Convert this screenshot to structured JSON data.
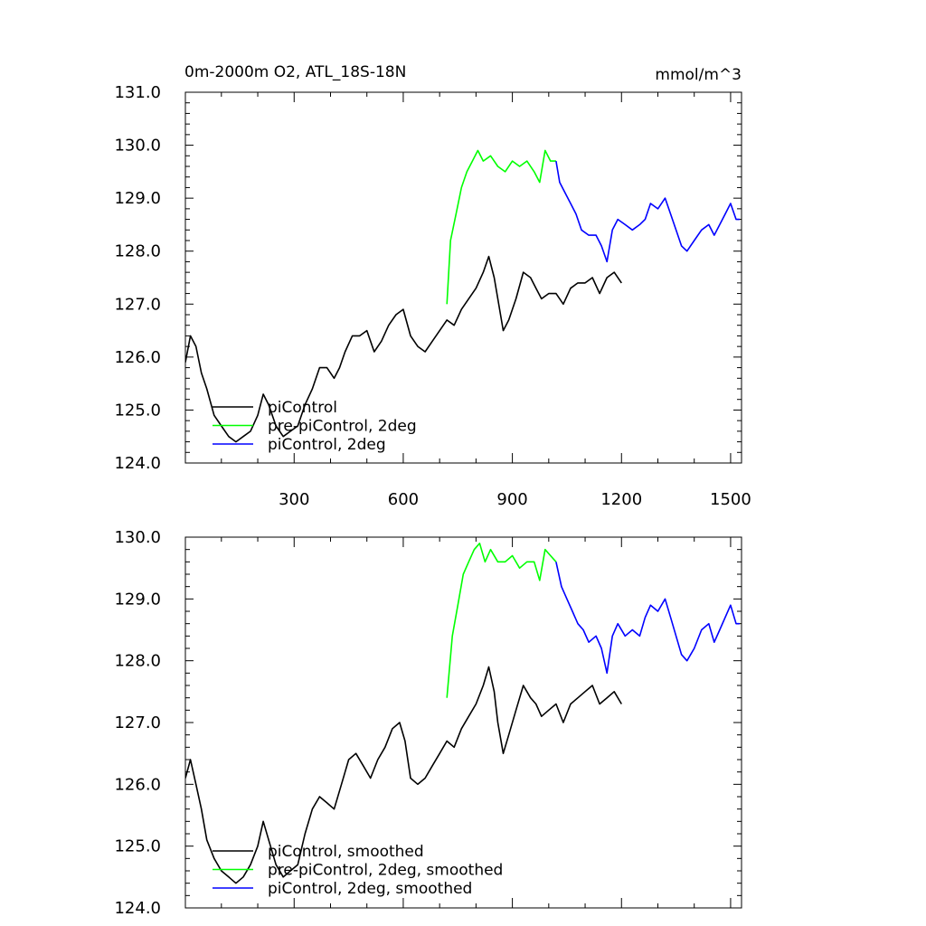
{
  "colors": {
    "piControl": "#000000",
    "prepiControl": "#00ff00",
    "piControl2deg": "#0000ff"
  },
  "chart_data": [
    {
      "type": "line",
      "title": "0m-2000m O2, ATL_18S-18N",
      "units": "mmol/m^3",
      "xlim": [
        1,
        1530
      ],
      "ylim": [
        124.0,
        131.0
      ],
      "xticks": [
        300,
        600,
        900,
        1200,
        1500
      ],
      "xtick_labels": [
        "300",
        "600",
        "900",
        "1200",
        "1500"
      ],
      "yticks": [
        124,
        125,
        126,
        127,
        128,
        129,
        130,
        131
      ],
      "ytick_labels": [
        "124.0",
        "125.0",
        "126.0",
        "127.0",
        "128.0",
        "129.0",
        "130.0",
        "131.0"
      ],
      "legend_position": "bottom-left",
      "series": [
        {
          "name": "piControl",
          "color": "#000000",
          "points": [
            [
              1,
              125.9
            ],
            [
              15,
              126.4
            ],
            [
              30,
              126.2
            ],
            [
              45,
              125.7
            ],
            [
              60,
              125.4
            ],
            [
              80,
              124.9
            ],
            [
              100,
              124.7
            ],
            [
              120,
              124.5
            ],
            [
              140,
              124.4
            ],
            [
              160,
              124.5
            ],
            [
              180,
              124.6
            ],
            [
              200,
              124.9
            ],
            [
              215,
              125.3
            ],
            [
              230,
              125.1
            ],
            [
              250,
              124.7
            ],
            [
              270,
              124.5
            ],
            [
              290,
              124.6
            ],
            [
              310,
              124.7
            ],
            [
              330,
              125.1
            ],
            [
              350,
              125.4
            ],
            [
              370,
              125.8
            ],
            [
              390,
              125.8
            ],
            [
              410,
              125.6
            ],
            [
              425,
              125.8
            ],
            [
              440,
              126.1
            ],
            [
              460,
              126.4
            ],
            [
              480,
              126.4
            ],
            [
              500,
              126.5
            ],
            [
              520,
              126.1
            ],
            [
              540,
              126.3
            ],
            [
              560,
              126.6
            ],
            [
              580,
              126.8
            ],
            [
              600,
              126.9
            ],
            [
              620,
              126.4
            ],
            [
              640,
              126.2
            ],
            [
              660,
              126.1
            ],
            [
              680,
              126.3
            ],
            [
              700,
              126.5
            ],
            [
              720,
              126.7
            ],
            [
              740,
              126.6
            ],
            [
              760,
              126.9
            ],
            [
              780,
              127.1
            ],
            [
              800,
              127.3
            ],
            [
              820,
              127.6
            ],
            [
              835,
              127.9
            ],
            [
              850,
              127.5
            ],
            [
              860,
              127.1
            ],
            [
              875,
              126.5
            ],
            [
              890,
              126.7
            ],
            [
              910,
              127.1
            ],
            [
              930,
              127.6
            ],
            [
              950,
              127.5
            ],
            [
              965,
              127.3
            ],
            [
              980,
              127.1
            ],
            [
              1000,
              127.2
            ],
            [
              1020,
              127.2
            ],
            [
              1040,
              127.0
            ],
            [
              1060,
              127.3
            ],
            [
              1080,
              127.4
            ],
            [
              1100,
              127.4
            ],
            [
              1120,
              127.5
            ],
            [
              1140,
              127.2
            ],
            [
              1160,
              127.5
            ],
            [
              1180,
              127.6
            ],
            [
              1200,
              127.4
            ]
          ]
        },
        {
          "name": "pre-piControl, 2deg",
          "color": "#00ff00",
          "points": [
            [
              720,
              127.0
            ],
            [
              730,
              128.2
            ],
            [
              745,
              128.7
            ],
            [
              760,
              129.2
            ],
            [
              775,
              129.5
            ],
            [
              790,
              129.7
            ],
            [
              805,
              129.9
            ],
            [
              820,
              129.7
            ],
            [
              840,
              129.8
            ],
            [
              860,
              129.6
            ],
            [
              880,
              129.5
            ],
            [
              900,
              129.7
            ],
            [
              920,
              129.6
            ],
            [
              940,
              129.7
            ],
            [
              960,
              129.5
            ],
            [
              975,
              129.3
            ],
            [
              990,
              129.9
            ],
            [
              1005,
              129.7
            ],
            [
              1020,
              129.7
            ]
          ]
        },
        {
          "name": "piControl, 2deg",
          "color": "#0000ff",
          "points": [
            [
              1020,
              129.7
            ],
            [
              1030,
              129.3
            ],
            [
              1045,
              129.1
            ],
            [
              1060,
              128.9
            ],
            [
              1075,
              128.7
            ],
            [
              1090,
              128.4
            ],
            [
              1110,
              128.3
            ],
            [
              1130,
              128.3
            ],
            [
              1145,
              128.1
            ],
            [
              1160,
              127.8
            ],
            [
              1175,
              128.4
            ],
            [
              1190,
              128.6
            ],
            [
              1210,
              128.5
            ],
            [
              1230,
              128.4
            ],
            [
              1250,
              128.5
            ],
            [
              1265,
              128.6
            ],
            [
              1280,
              128.9
            ],
            [
              1300,
              128.8
            ],
            [
              1320,
              129.0
            ],
            [
              1335,
              128.7
            ],
            [
              1350,
              128.4
            ],
            [
              1365,
              128.1
            ],
            [
              1380,
              128.0
            ],
            [
              1400,
              128.2
            ],
            [
              1420,
              128.4
            ],
            [
              1440,
              128.5
            ],
            [
              1455,
              128.3
            ],
            [
              1470,
              128.5
            ],
            [
              1485,
              128.7
            ],
            [
              1500,
              128.9
            ],
            [
              1515,
              128.6
            ],
            [
              1525,
              128.6
            ]
          ]
        }
      ],
      "legend": [
        "piControl",
        "pre-piControl, 2deg",
        "piControl, 2deg"
      ]
    },
    {
      "type": "line",
      "xlim": [
        1,
        1530
      ],
      "ylim": [
        124.0,
        130.0
      ],
      "xticks": [
        300,
        600,
        900,
        1200,
        1500
      ],
      "yticks": [
        124,
        125,
        126,
        127,
        128,
        129,
        130
      ],
      "ytick_labels": [
        "124.0",
        "125.0",
        "126.0",
        "127.0",
        "128.0",
        "129.0",
        "130.0"
      ],
      "legend_position": "bottom-left",
      "series": [
        {
          "name": "piControl, smoothed",
          "color": "#000000",
          "points": [
            [
              1,
              126.1
            ],
            [
              15,
              126.4
            ],
            [
              30,
              126.0
            ],
            [
              45,
              125.6
            ],
            [
              60,
              125.1
            ],
            [
              80,
              124.8
            ],
            [
              100,
              124.6
            ],
            [
              120,
              124.5
            ],
            [
              140,
              124.4
            ],
            [
              160,
              124.5
            ],
            [
              180,
              124.7
            ],
            [
              200,
              125.0
            ],
            [
              215,
              125.4
            ],
            [
              230,
              125.1
            ],
            [
              250,
              124.7
            ],
            [
              270,
              124.5
            ],
            [
              290,
              124.6
            ],
            [
              310,
              124.7
            ],
            [
              330,
              125.2
            ],
            [
              350,
              125.6
            ],
            [
              370,
              125.8
            ],
            [
              390,
              125.7
            ],
            [
              410,
              125.6
            ],
            [
              430,
              126.0
            ],
            [
              450,
              126.4
            ],
            [
              470,
              126.5
            ],
            [
              490,
              126.3
            ],
            [
              510,
              126.1
            ],
            [
              530,
              126.4
            ],
            [
              550,
              126.6
            ],
            [
              570,
              126.9
            ],
            [
              590,
              127.0
            ],
            [
              605,
              126.7
            ],
            [
              620,
              126.1
            ],
            [
              640,
              126.0
            ],
            [
              660,
              126.1
            ],
            [
              680,
              126.3
            ],
            [
              700,
              126.5
            ],
            [
              720,
              126.7
            ],
            [
              740,
              126.6
            ],
            [
              760,
              126.9
            ],
            [
              780,
              127.1
            ],
            [
              800,
              127.3
            ],
            [
              820,
              127.6
            ],
            [
              835,
              127.9
            ],
            [
              850,
              127.5
            ],
            [
              860,
              127.0
            ],
            [
              875,
              126.5
            ],
            [
              890,
              126.8
            ],
            [
              910,
              127.2
            ],
            [
              930,
              127.6
            ],
            [
              950,
              127.4
            ],
            [
              965,
              127.3
            ],
            [
              980,
              127.1
            ],
            [
              1000,
              127.2
            ],
            [
              1020,
              127.3
            ],
            [
              1040,
              127.0
            ],
            [
              1060,
              127.3
            ],
            [
              1080,
              127.4
            ],
            [
              1100,
              127.5
            ],
            [
              1120,
              127.6
            ],
            [
              1140,
              127.3
            ],
            [
              1160,
              127.4
            ],
            [
              1180,
              127.5
            ],
            [
              1200,
              127.3
            ]
          ]
        },
        {
          "name": "pre-piControl, 2deg, smoothed",
          "color": "#00ff00",
          "points": [
            [
              720,
              127.4
            ],
            [
              735,
              128.4
            ],
            [
              750,
              128.9
            ],
            [
              765,
              129.4
            ],
            [
              780,
              129.6
            ],
            [
              795,
              129.8
            ],
            [
              810,
              129.9
            ],
            [
              825,
              129.6
            ],
            [
              840,
              129.8
            ],
            [
              860,
              129.6
            ],
            [
              880,
              129.6
            ],
            [
              900,
              129.7
            ],
            [
              920,
              129.5
            ],
            [
              940,
              129.6
            ],
            [
              960,
              129.6
            ],
            [
              975,
              129.3
            ],
            [
              990,
              129.8
            ],
            [
              1005,
              129.7
            ],
            [
              1020,
              129.6
            ]
          ]
        },
        {
          "name": "piControl, 2deg, smoothed",
          "color": "#0000ff",
          "points": [
            [
              1020,
              129.6
            ],
            [
              1035,
              129.2
            ],
            [
              1050,
              129.0
            ],
            [
              1065,
              128.8
            ],
            [
              1080,
              128.6
            ],
            [
              1095,
              128.5
            ],
            [
              1110,
              128.3
            ],
            [
              1130,
              128.4
            ],
            [
              1145,
              128.2
            ],
            [
              1160,
              127.8
            ],
            [
              1175,
              128.4
            ],
            [
              1190,
              128.6
            ],
            [
              1210,
              128.4
            ],
            [
              1230,
              128.5
            ],
            [
              1250,
              128.4
            ],
            [
              1265,
              128.7
            ],
            [
              1280,
              128.9
            ],
            [
              1300,
              128.8
            ],
            [
              1320,
              129.0
            ],
            [
              1335,
              128.7
            ],
            [
              1350,
              128.4
            ],
            [
              1365,
              128.1
            ],
            [
              1380,
              128.0
            ],
            [
              1400,
              128.2
            ],
            [
              1420,
              128.5
            ],
            [
              1440,
              128.6
            ],
            [
              1455,
              128.3
            ],
            [
              1470,
              128.5
            ],
            [
              1485,
              128.7
            ],
            [
              1500,
              128.9
            ],
            [
              1515,
              128.6
            ],
            [
              1525,
              128.6
            ]
          ]
        }
      ],
      "legend": [
        "piControl, smoothed",
        "pre-piControl, 2deg, smoothed",
        "piControl, 2deg, smoothed"
      ]
    }
  ]
}
